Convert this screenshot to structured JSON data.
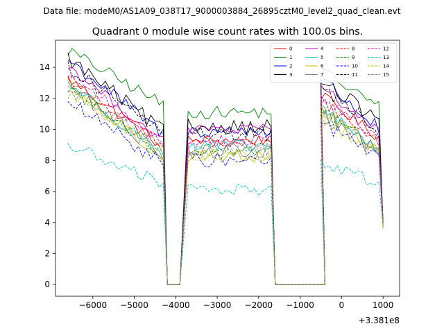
{
  "chart_data": {
    "type": "line",
    "suptitle": "Data file: modeM0/AS1A09_038T17_9000003884_26895cztM0_level2_quad_clean.evt",
    "title": "Quadrant 0 module wise count rates with 100.0s bins.",
    "xlabel": "",
    "ylabel": "",
    "offset_text": "+3.381e8",
    "xlim": [
      -6900,
      1400
    ],
    "ylim": [
      -0.75,
      15.75
    ],
    "x_ticks": [
      -6000,
      -5000,
      -4000,
      -3000,
      -2000,
      -1000,
      0,
      1000
    ],
    "x_tick_labels": [
      "−6000",
      "−5000",
      "−4000",
      "−3000",
      "−2000",
      "−1000",
      "0",
      "1000"
    ],
    "y_ticks": [
      0,
      2,
      4,
      6,
      8,
      10,
      12,
      14
    ],
    "y_tick_labels": [
      "0",
      "2",
      "4",
      "6",
      "8",
      "10",
      "12",
      "14"
    ],
    "legend_position": "top-right",
    "segments": [
      {
        "x_start": -6600,
        "x_end": -4300
      },
      {
        "x_start": -3700,
        "x_end": -1700
      },
      {
        "x_start": -500,
        "x_end": 1000
      }
    ],
    "gaps": [
      {
        "x_start": -4200,
        "x_end": -3900
      },
      {
        "x_start": -1600,
        "x_end": -400
      }
    ],
    "series": [
      {
        "name": "0",
        "color": "#ff0000",
        "dash": "solid",
        "levels": [
          [
            13.3,
            8.9
          ],
          [
            9.3,
            9.3
          ],
          [
            12.2,
            9.3
          ]
        ]
      },
      {
        "name": "1",
        "color": "#008000",
        "dash": "solid",
        "levels": [
          [
            15.1,
            11.6
          ],
          [
            11.1,
            11.1
          ],
          [
            13.8,
            11.3
          ]
        ]
      },
      {
        "name": "2",
        "color": "#0000ff",
        "dash": "solid",
        "levels": [
          [
            14.5,
            9.7
          ],
          [
            9.9,
            9.9
          ],
          [
            13.3,
            9.8
          ]
        ]
      },
      {
        "name": "3",
        "color": "#000000",
        "dash": "solid",
        "levels": [
          [
            14.6,
            9.9
          ],
          [
            10.2,
            10.2
          ],
          [
            13.0,
            10.5
          ]
        ]
      },
      {
        "name": "4",
        "color": "#bf00bf",
        "dash": "solid",
        "levels": [
          [
            14.1,
            9.2
          ],
          [
            10.0,
            10.0
          ],
          [
            12.8,
            9.6
          ]
        ]
      },
      {
        "name": "5",
        "color": "#00bfbf",
        "dash": "solid",
        "levels": [
          [
            13.0,
            8.4
          ],
          [
            8.9,
            8.9
          ],
          [
            11.4,
            8.4
          ]
        ]
      },
      {
        "name": "6",
        "color": "#bfbf00",
        "dash": "solid",
        "levels": [
          [
            12.8,
            8.2
          ],
          [
            8.3,
            8.3
          ],
          [
            11.3,
            8.3
          ]
        ]
      },
      {
        "name": "7",
        "color": "#808080",
        "dash": "solid",
        "levels": [
          [
            12.9,
            8.4
          ],
          [
            8.6,
            8.6
          ],
          [
            11.1,
            8.3
          ]
        ]
      },
      {
        "name": "8",
        "color": "#ff0000",
        "dash": "dashed",
        "levels": [
          [
            13.2,
            9.1
          ],
          [
            9.1,
            9.1
          ],
          [
            11.9,
            9.0
          ]
        ]
      },
      {
        "name": "9",
        "color": "#008000",
        "dash": "dashed",
        "levels": [
          [
            12.7,
            8.5
          ],
          [
            8.7,
            8.7
          ],
          [
            11.2,
            8.6
          ]
        ]
      },
      {
        "name": "10",
        "color": "#0000ff",
        "dash": "dashed",
        "levels": [
          [
            11.8,
            7.8
          ],
          [
            8.0,
            8.0
          ],
          [
            10.5,
            8.0
          ]
        ]
      },
      {
        "name": "11",
        "color": "#000000",
        "dash": "dashed",
        "levels": [
          [
            14.0,
            9.8
          ],
          [
            9.7,
            9.7
          ],
          [
            12.8,
            9.8
          ]
        ]
      },
      {
        "name": "12",
        "color": "#bf00bf",
        "dash": "dashed",
        "levels": [
          [
            13.6,
            9.2
          ],
          [
            9.3,
            9.3
          ],
          [
            12.1,
            9.2
          ]
        ]
      },
      {
        "name": "13",
        "color": "#00bfbf",
        "dash": "dashed",
        "levels": [
          [
            9.0,
            6.5
          ],
          [
            6.1,
            6.1
          ],
          [
            7.9,
            6.4
          ]
        ]
      },
      {
        "name": "14",
        "color": "#bfbf00",
        "dash": "dashed",
        "levels": [
          [
            12.4,
            8.3
          ],
          [
            8.3,
            8.3
          ],
          [
            10.9,
            8.2
          ]
        ]
      },
      {
        "name": "15",
        "color": "#808080",
        "dash": "dashed",
        "levels": [
          [
            12.6,
            8.8
          ],
          [
            8.7,
            8.7
          ],
          [
            11.0,
            8.5
          ]
        ]
      }
    ]
  }
}
